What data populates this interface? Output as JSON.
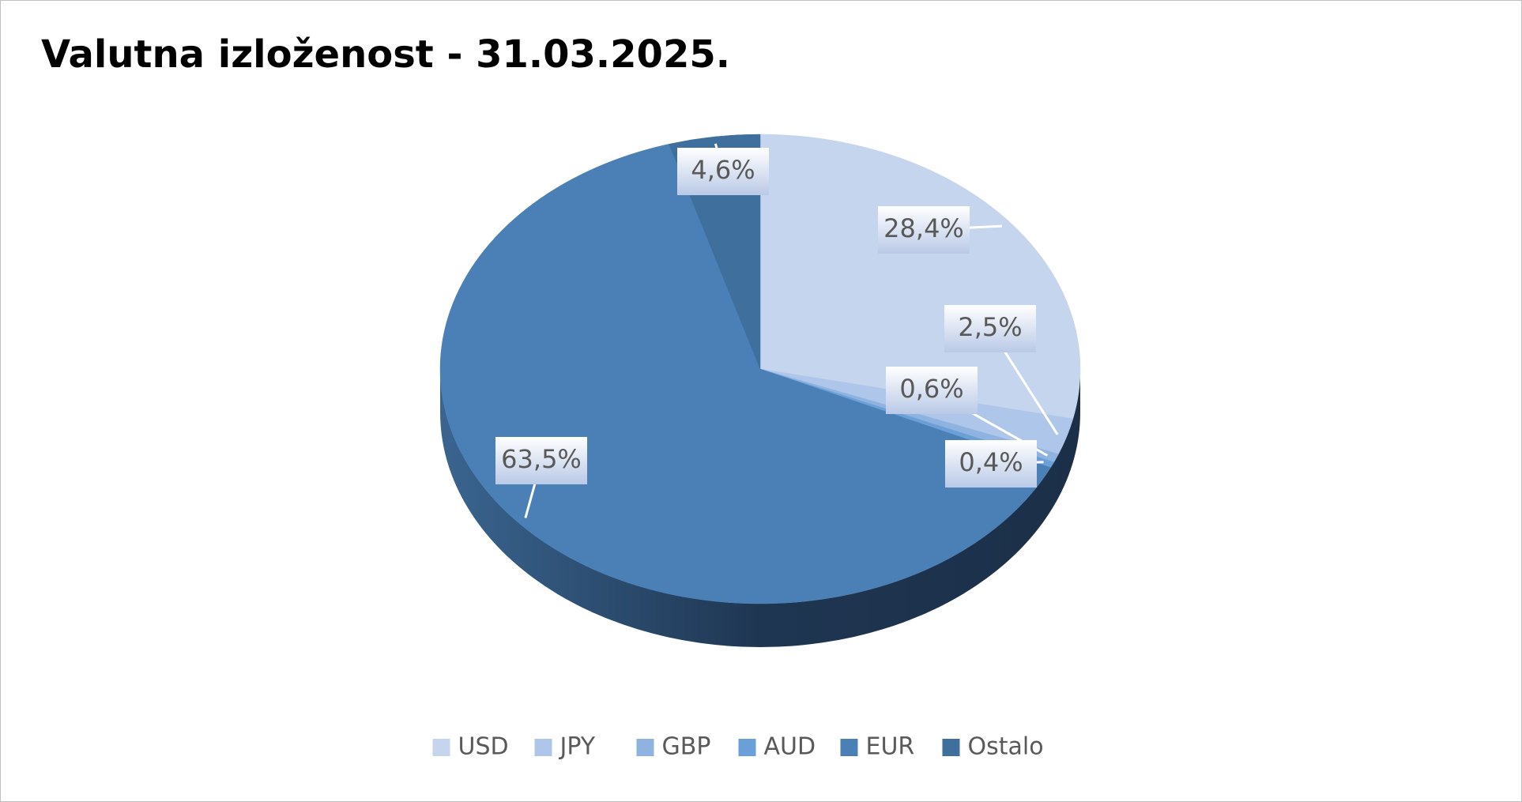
{
  "chart_data": {
    "type": "pie",
    "title": "Valutna izloženost - 31.03.2025.",
    "categories": [
      "USD",
      "JPY",
      "GBP",
      "AUD",
      "EUR",
      "Ostalo"
    ],
    "values": [
      28.4,
      2.5,
      0.6,
      0.4,
      63.5,
      4.6
    ],
    "value_labels": [
      "28,4%",
      "2,5%",
      "0,6%",
      "0,4%",
      "63,5%",
      "4,6%"
    ],
    "colors": [
      "#c5d5ee",
      "#adc6ea",
      "#8fb3e0",
      "#6a9fd8",
      "#4a80b6",
      "#3f6f9d"
    ],
    "legend": "bottom"
  }
}
